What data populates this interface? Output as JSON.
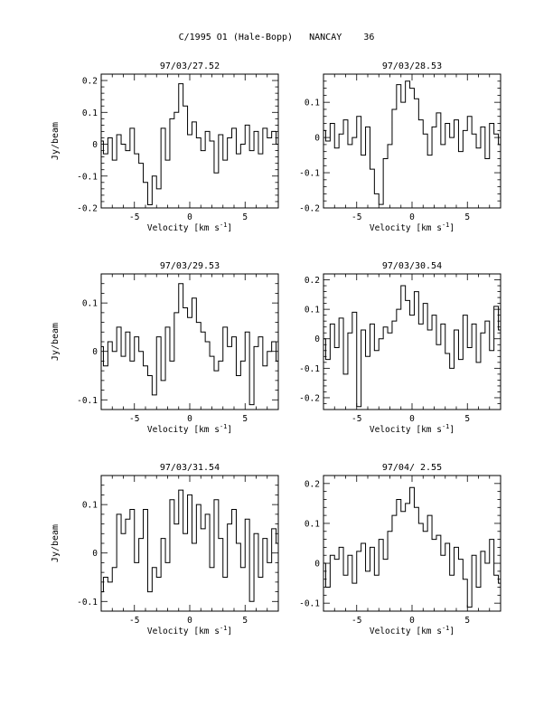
{
  "page": {
    "title": "C/1995 O1 (Hale-Bopp)   NANCAY    36"
  },
  "chart_data": [
    {
      "type": "line",
      "title": "97/03/27.52",
      "xlabel": "Velocity [km s^-1]",
      "ylabel": "Jy/beam",
      "xlim": [
        -8,
        8
      ],
      "ylim": [
        -0.2,
        0.22
      ],
      "xticks": [
        -5,
        0,
        5
      ],
      "yticks": [
        -0.2,
        -0.1,
        0,
        0.1,
        0.2
      ],
      "x": [
        -8.0,
        -7.6,
        -7.2,
        -6.8,
        -6.4,
        -6.0,
        -5.6,
        -5.2,
        -4.8,
        -4.4,
        -4.0,
        -3.6,
        -3.2,
        -2.8,
        -2.4,
        -2.0,
        -1.6,
        -1.2,
        -0.8,
        -0.4,
        0.0,
        0.4,
        0.8,
        1.2,
        1.6,
        2.0,
        2.4,
        2.8,
        3.2,
        3.6,
        4.0,
        4.4,
        4.8,
        5.2,
        5.6,
        6.0,
        6.4,
        6.8,
        7.2,
        7.6,
        8.0
      ],
      "y": [
        0.01,
        -0.03,
        0.02,
        -0.05,
        0.03,
        0.0,
        -0.02,
        0.05,
        -0.03,
        -0.06,
        -0.12,
        -0.19,
        -0.1,
        -0.14,
        0.05,
        -0.05,
        0.08,
        0.1,
        0.19,
        0.12,
        0.03,
        0.07,
        0.02,
        -0.02,
        0.04,
        0.01,
        -0.09,
        0.03,
        -0.05,
        0.02,
        0.05,
        -0.03,
        0.0,
        0.06,
        -0.02,
        0.04,
        -0.03,
        0.05,
        0.02,
        0.04,
        0.0
      ]
    },
    {
      "type": "line",
      "title": "97/03/28.53",
      "xlabel": "Velocity [km s^-1]",
      "ylabel": "",
      "xlim": [
        -8,
        8
      ],
      "ylim": [
        -0.2,
        0.18
      ],
      "xticks": [
        -5,
        0,
        5
      ],
      "yticks": [
        -0.2,
        -0.1,
        0,
        0.1
      ],
      "x": [
        -8.0,
        -7.6,
        -7.2,
        -6.8,
        -6.4,
        -6.0,
        -5.6,
        -5.2,
        -4.8,
        -4.4,
        -4.0,
        -3.6,
        -3.2,
        -2.8,
        -2.4,
        -2.0,
        -1.6,
        -1.2,
        -0.8,
        -0.4,
        0.0,
        0.4,
        0.8,
        1.2,
        1.6,
        2.0,
        2.4,
        2.8,
        3.2,
        3.6,
        4.0,
        4.4,
        4.8,
        5.2,
        5.6,
        6.0,
        6.4,
        6.8,
        7.2,
        7.6,
        8.0
      ],
      "y": [
        0.02,
        -0.01,
        0.04,
        -0.03,
        0.01,
        0.05,
        -0.02,
        0.0,
        0.06,
        -0.05,
        0.03,
        -0.09,
        -0.16,
        -0.19,
        -0.06,
        -0.02,
        0.08,
        0.15,
        0.1,
        0.16,
        0.14,
        0.11,
        0.05,
        0.01,
        -0.05,
        0.03,
        0.07,
        -0.02,
        0.04,
        0.0,
        0.05,
        -0.04,
        0.02,
        0.06,
        0.01,
        -0.03,
        0.03,
        -0.06,
        0.04,
        0.01,
        -0.02
      ]
    },
    {
      "type": "line",
      "title": "97/03/29.53",
      "xlabel": "Velocity [km s^-1]",
      "ylabel": "Jy/beam",
      "xlim": [
        -8,
        8
      ],
      "ylim": [
        -0.12,
        0.16
      ],
      "xticks": [
        -5,
        0,
        5
      ],
      "yticks": [
        -0.1,
        0,
        0.1
      ],
      "x": [
        -8.0,
        -7.6,
        -7.2,
        -6.8,
        -6.4,
        -6.0,
        -5.6,
        -5.2,
        -4.8,
        -4.4,
        -4.0,
        -3.6,
        -3.2,
        -2.8,
        -2.4,
        -2.0,
        -1.6,
        -1.2,
        -0.8,
        -0.4,
        0.0,
        0.4,
        0.8,
        1.2,
        1.6,
        2.0,
        2.4,
        2.8,
        3.2,
        3.6,
        4.0,
        4.4,
        4.8,
        5.2,
        5.6,
        6.0,
        6.4,
        6.8,
        7.2,
        7.6,
        8.0
      ],
      "y": [
        0.01,
        -0.03,
        0.02,
        0.0,
        0.05,
        -0.01,
        0.04,
        -0.02,
        0.03,
        0.0,
        -0.03,
        -0.05,
        -0.09,
        0.03,
        -0.06,
        0.05,
        -0.02,
        0.08,
        0.14,
        0.09,
        0.07,
        0.11,
        0.06,
        0.04,
        0.02,
        -0.01,
        -0.04,
        -0.02,
        0.05,
        0.01,
        0.03,
        -0.05,
        -0.02,
        0.04,
        -0.11,
        0.01,
        0.03,
        -0.03,
        0.0,
        0.02,
        -0.02
      ]
    },
    {
      "type": "line",
      "title": "97/03/30.54",
      "xlabel": "Velocity [km s^-1]",
      "ylabel": "",
      "xlim": [
        -8,
        8
      ],
      "ylim": [
        -0.24,
        0.22
      ],
      "xticks": [
        -5,
        0,
        5
      ],
      "yticks": [
        -0.2,
        -0.1,
        0,
        0.1,
        0.2
      ],
      "x": [
        -8.0,
        -7.6,
        -7.2,
        -6.8,
        -6.4,
        -6.0,
        -5.6,
        -5.2,
        -4.8,
        -4.4,
        -4.0,
        -3.6,
        -3.2,
        -2.8,
        -2.4,
        -2.0,
        -1.6,
        -1.2,
        -0.8,
        -0.4,
        0.0,
        0.4,
        0.8,
        1.2,
        1.6,
        2.0,
        2.4,
        2.8,
        3.2,
        3.6,
        4.0,
        4.4,
        4.8,
        5.2,
        5.6,
        6.0,
        6.4,
        6.8,
        7.2,
        7.6,
        8.0
      ],
      "y": [
        0.0,
        -0.07,
        0.05,
        -0.03,
        0.07,
        -0.12,
        0.02,
        0.09,
        -0.23,
        0.03,
        -0.06,
        0.05,
        -0.04,
        0.0,
        0.04,
        0.02,
        0.06,
        0.1,
        0.18,
        0.13,
        0.08,
        0.16,
        0.05,
        0.12,
        0.03,
        0.08,
        -0.02,
        0.05,
        -0.05,
        -0.1,
        0.03,
        -0.07,
        0.08,
        -0.03,
        0.05,
        -0.08,
        0.02,
        0.06,
        -0.04,
        0.11,
        0.03
      ]
    },
    {
      "type": "line",
      "title": "97/03/31.54",
      "xlabel": "Velocity [km s^-1]",
      "ylabel": "Jy/beam",
      "xlim": [
        -8,
        8
      ],
      "ylim": [
        -0.12,
        0.16
      ],
      "xticks": [
        -5,
        0,
        5
      ],
      "yticks": [
        -0.1,
        0,
        0.1
      ],
      "x": [
        -8.0,
        -7.6,
        -7.2,
        -6.8,
        -6.4,
        -6.0,
        -5.6,
        -5.2,
        -4.8,
        -4.4,
        -4.0,
        -3.6,
        -3.2,
        -2.8,
        -2.4,
        -2.0,
        -1.6,
        -1.2,
        -0.8,
        -0.4,
        0.0,
        0.4,
        0.8,
        1.2,
        1.6,
        2.0,
        2.4,
        2.8,
        3.2,
        3.6,
        4.0,
        4.4,
        4.8,
        5.2,
        5.6,
        6.0,
        6.4,
        6.8,
        7.2,
        7.6,
        8.0
      ],
      "y": [
        -0.08,
        -0.05,
        -0.06,
        -0.03,
        0.08,
        0.04,
        0.07,
        0.09,
        -0.02,
        0.03,
        0.09,
        -0.08,
        -0.03,
        -0.05,
        0.03,
        -0.02,
        0.11,
        0.06,
        0.13,
        0.04,
        0.12,
        0.02,
        0.1,
        0.05,
        0.08,
        -0.03,
        0.11,
        0.03,
        -0.05,
        0.06,
        0.09,
        0.02,
        -0.03,
        0.07,
        -0.1,
        0.04,
        -0.05,
        0.03,
        -0.02,
        0.05,
        0.02
      ]
    },
    {
      "type": "line",
      "title": "97/04/ 2.55",
      "xlabel": "Velocity [km s^-1]",
      "ylabel": "",
      "xlim": [
        -8,
        8
      ],
      "ylim": [
        -0.12,
        0.22
      ],
      "xticks": [
        -5,
        0,
        5
      ],
      "yticks": [
        -0.1,
        0,
        0.1,
        0.2
      ],
      "x": [
        -8.0,
        -7.6,
        -7.2,
        -6.8,
        -6.4,
        -6.0,
        -5.6,
        -5.2,
        -4.8,
        -4.4,
        -4.0,
        -3.6,
        -3.2,
        -2.8,
        -2.4,
        -2.0,
        -1.6,
        -1.2,
        -0.8,
        -0.4,
        0.0,
        0.4,
        0.8,
        1.2,
        1.6,
        2.0,
        2.4,
        2.8,
        3.2,
        3.6,
        4.0,
        4.4,
        4.8,
        5.2,
        5.6,
        6.0,
        6.4,
        6.8,
        7.2,
        7.6,
        8.0
      ],
      "y": [
        0.0,
        -0.06,
        0.02,
        0.01,
        0.04,
        -0.03,
        0.02,
        -0.05,
        0.03,
        0.05,
        -0.02,
        0.04,
        -0.03,
        0.06,
        0.01,
        0.08,
        0.12,
        0.16,
        0.13,
        0.15,
        0.19,
        0.14,
        0.1,
        0.08,
        0.12,
        0.06,
        0.07,
        0.02,
        0.05,
        -0.03,
        0.04,
        0.01,
        -0.04,
        -0.11,
        0.02,
        -0.06,
        0.03,
        0.0,
        0.06,
        -0.03,
        -0.05
      ]
    }
  ]
}
